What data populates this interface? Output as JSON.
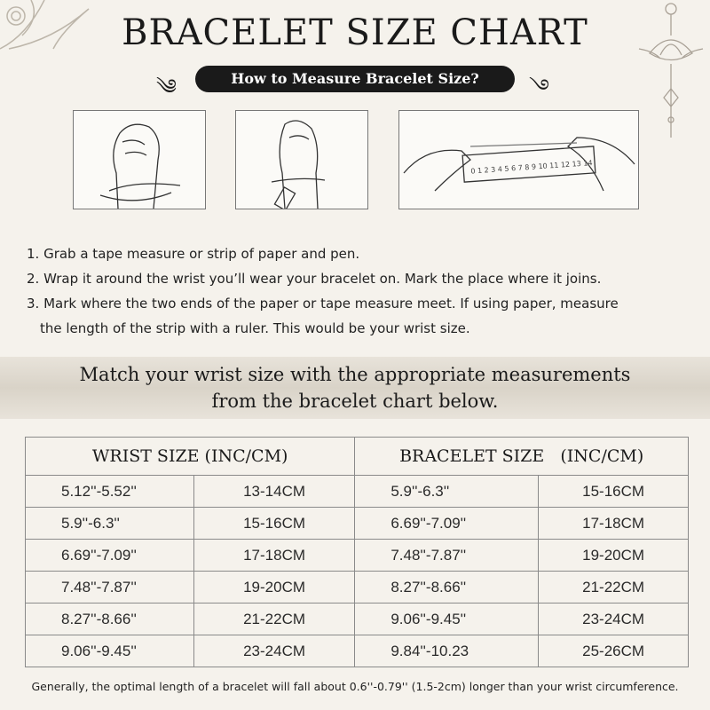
{
  "title": "BRACELET SIZE CHART",
  "subtitle": "How to Measure Bracelet Size?",
  "steps": [
    "1. Grab a tape measure or strip of paper and pen.",
    "2. Wrap it around the wrist you’ll wear your bracelet on. Mark the place where it joins.",
    "3. Mark where the two ends of the paper or tape measure meet. If using paper, measure",
    "the length of the strip with a ruler. This would be your wrist size."
  ],
  "ruler_numbers": "0 1 2 3 4 5 6 7 8 9 10 11 12 13 14",
  "banner": [
    "Match your wrist size with the appropriate measurements",
    "from the bracelet chart below."
  ],
  "table": {
    "headers": [
      "WRIST SIZE (INC/CM)",
      "BRACELET SIZE   (INC/CM)"
    ],
    "rows": [
      [
        "5.12''-5.52''",
        "13-14CM",
        "5.9''-6.3''",
        "15-16CM"
      ],
      [
        "5.9''-6.3''",
        "15-16CM",
        "6.69''-7.09''",
        "17-18CM"
      ],
      [
        "6.69''-7.09''",
        "17-18CM",
        "7.48''-7.87''",
        "19-20CM"
      ],
      [
        "7.48''-7.87''",
        "19-20CM",
        "8.27''-8.66''",
        "21-22CM"
      ],
      [
        "8.27''-8.66''",
        "21-22CM",
        "9.06''-9.45''",
        "23-24CM"
      ],
      [
        "9.06''-9.45''",
        "23-24CM",
        "9.84''-10.23",
        "25-26CM"
      ]
    ]
  },
  "footnote": "Generally, the optimal length of a bracelet will fall about 0.6''-0.79'' (1.5-2cm) longer than your wrist circumference."
}
